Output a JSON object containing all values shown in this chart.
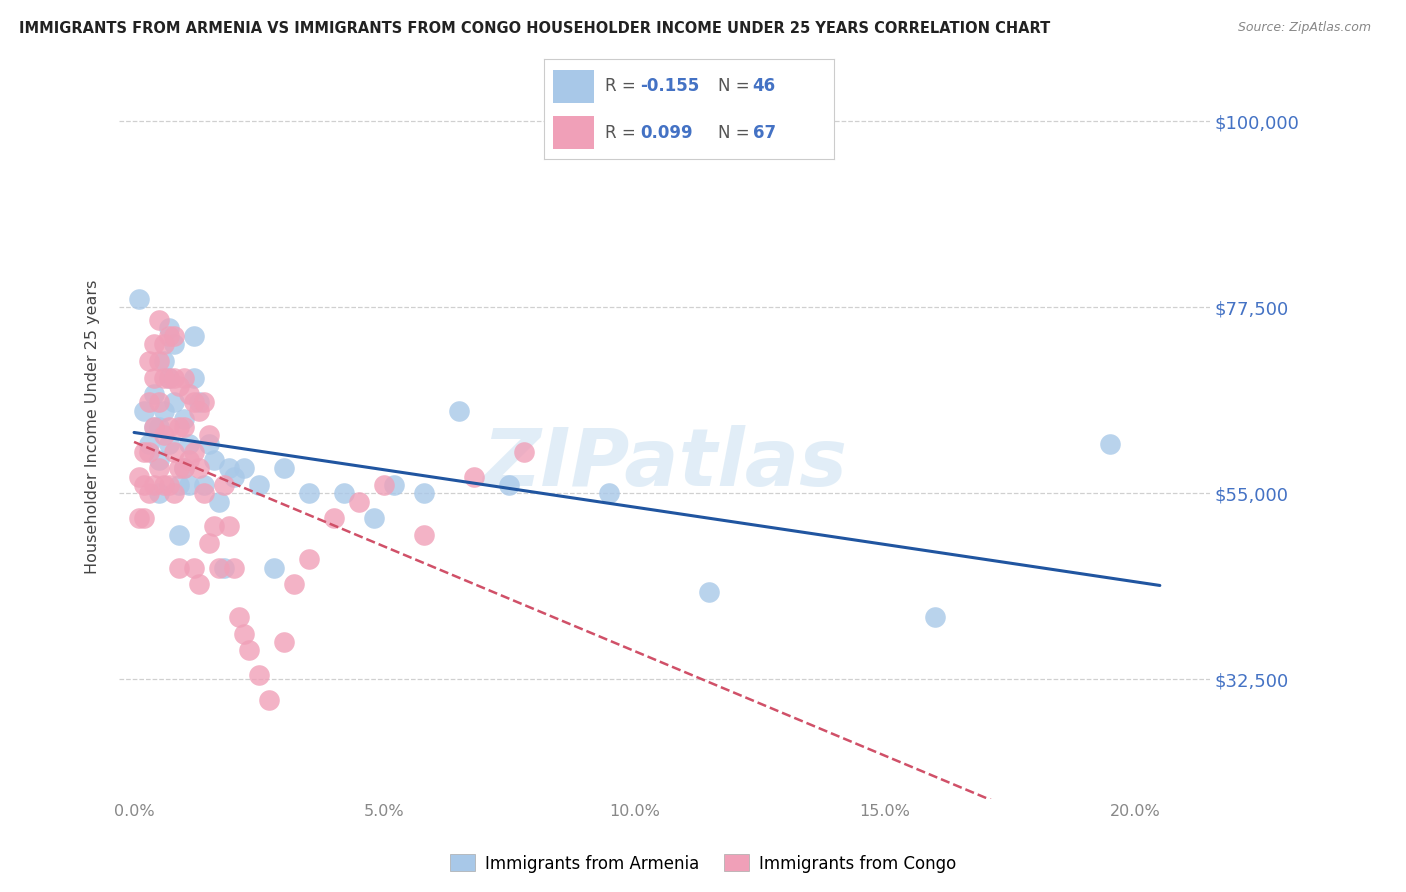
{
  "title": "IMMIGRANTS FROM ARMENIA VS IMMIGRANTS FROM CONGO HOUSEHOLDER INCOME UNDER 25 YEARS CORRELATION CHART",
  "source": "Source: ZipAtlas.com",
  "ylabel": "Householder Income Under 25 years",
  "xlabel_tick_vals": [
    0.0,
    0.05,
    0.1,
    0.15,
    0.2
  ],
  "xlabel_tick_labels": [
    "0.0%",
    "5.0%",
    "10.0%",
    "15.0%",
    "20.0%"
  ],
  "ylabel_tick_vals": [
    32500,
    55000,
    77500,
    100000
  ],
  "ylabel_tick_labels": [
    "$32,500",
    "$55,000",
    "$77,500",
    "$100,000"
  ],
  "ylim": [
    18000,
    108000
  ],
  "xlim": [
    -0.003,
    0.215
  ],
  "armenia_R": -0.155,
  "armenia_N": 46,
  "congo_R": 0.099,
  "congo_N": 67,
  "armenia_color": "#a8c8e8",
  "congo_color": "#f0a0b8",
  "armenia_line_color": "#2055a0",
  "congo_line_color": "#d05068",
  "armenia_x": [
    0.001,
    0.002,
    0.003,
    0.004,
    0.004,
    0.005,
    0.005,
    0.005,
    0.006,
    0.006,
    0.007,
    0.007,
    0.007,
    0.008,
    0.008,
    0.009,
    0.009,
    0.01,
    0.01,
    0.011,
    0.011,
    0.012,
    0.012,
    0.013,
    0.014,
    0.015,
    0.016,
    0.017,
    0.018,
    0.019,
    0.02,
    0.022,
    0.025,
    0.028,
    0.03,
    0.035,
    0.042,
    0.048,
    0.052,
    0.058,
    0.065,
    0.075,
    0.095,
    0.115,
    0.16,
    0.195
  ],
  "armenia_y": [
    78500,
    65000,
    61000,
    67000,
    63000,
    63000,
    59000,
    55000,
    71000,
    65000,
    75000,
    69000,
    61000,
    73000,
    66000,
    56000,
    50000,
    64000,
    58000,
    61000,
    56000,
    74000,
    69000,
    66000,
    56000,
    61000,
    59000,
    54000,
    46000,
    58000,
    57000,
    58000,
    56000,
    46000,
    58000,
    55000,
    55000,
    52000,
    56000,
    55000,
    65000,
    56000,
    55000,
    43000,
    40000,
    61000
  ],
  "congo_x": [
    0.001,
    0.001,
    0.002,
    0.002,
    0.002,
    0.003,
    0.003,
    0.003,
    0.003,
    0.004,
    0.004,
    0.004,
    0.004,
    0.005,
    0.005,
    0.005,
    0.005,
    0.006,
    0.006,
    0.006,
    0.006,
    0.007,
    0.007,
    0.007,
    0.007,
    0.008,
    0.008,
    0.008,
    0.008,
    0.009,
    0.009,
    0.009,
    0.009,
    0.01,
    0.01,
    0.01,
    0.011,
    0.011,
    0.012,
    0.012,
    0.012,
    0.013,
    0.013,
    0.013,
    0.014,
    0.014,
    0.015,
    0.015,
    0.016,
    0.017,
    0.018,
    0.019,
    0.02,
    0.021,
    0.022,
    0.023,
    0.025,
    0.027,
    0.03,
    0.032,
    0.035,
    0.04,
    0.045,
    0.05,
    0.058,
    0.068,
    0.078
  ],
  "congo_y": [
    57000,
    52000,
    60000,
    56000,
    52000,
    71000,
    66000,
    60000,
    55000,
    73000,
    69000,
    63000,
    56000,
    76000,
    71000,
    66000,
    58000,
    73000,
    69000,
    62000,
    56000,
    74000,
    69000,
    63000,
    56000,
    74000,
    69000,
    60000,
    55000,
    68000,
    63000,
    58000,
    46000,
    69000,
    63000,
    58000,
    67000,
    59000,
    66000,
    60000,
    46000,
    65000,
    58000,
    44000,
    66000,
    55000,
    62000,
    49000,
    51000,
    46000,
    56000,
    51000,
    46000,
    40000,
    38000,
    36000,
    33000,
    30000,
    37000,
    44000,
    47000,
    52000,
    54000,
    56000,
    50000,
    57000,
    60000
  ],
  "watermark": "ZIPatlas",
  "background_color": "#ffffff",
  "grid_color": "#d0d0d0"
}
